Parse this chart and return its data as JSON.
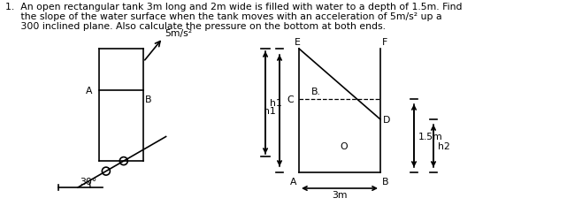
{
  "bg_color": "#ffffff",
  "line_color": "#000000",
  "label_5ms2": "5m/s²",
  "label_30deg": "30°",
  "label_A_incline": "A",
  "label_B_incline": "B",
  "label_h1": "h1",
  "label_h2": "h2",
  "label_1p5m": "1.5m",
  "label_3m": "3m",
  "label_E": "E",
  "label_F": "F",
  "label_C": "C",
  "label_D": "D",
  "label_A_tank": "A",
  "label_B_tank": "B",
  "label_O": "O",
  "label_Bdot": "B.",
  "title_line1": "1.  An open rectangular tank 3m long and 2m wide is filled with water to a depth of 1.5m. Find",
  "title_line2": "     the slope of the water surface when the tank moves with an acceleration of 5m/s² up a",
  "title_line3": "     300 inclined plane. Also calculate the pressure on the bottom at both ends."
}
